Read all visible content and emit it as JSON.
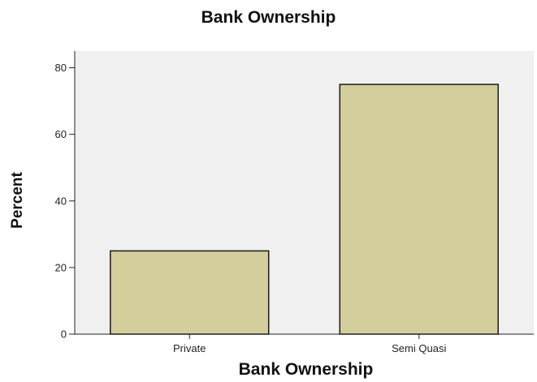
{
  "chart_data": {
    "type": "bar",
    "title": "Bank Ownership",
    "xlabel": "Bank Ownership",
    "ylabel": "Percent",
    "categories": [
      "Private",
      "Semi Quasi"
    ],
    "values": [
      25,
      75
    ],
    "ylim": [
      0,
      85
    ],
    "yticks": [
      0,
      20,
      40,
      60,
      80
    ],
    "grid": false,
    "colors": {
      "bar_fill": "#d3ce9b",
      "bar_stroke": "#1a1a1a",
      "plot_bg": "#f0f0f0",
      "axis": "#222222"
    }
  }
}
